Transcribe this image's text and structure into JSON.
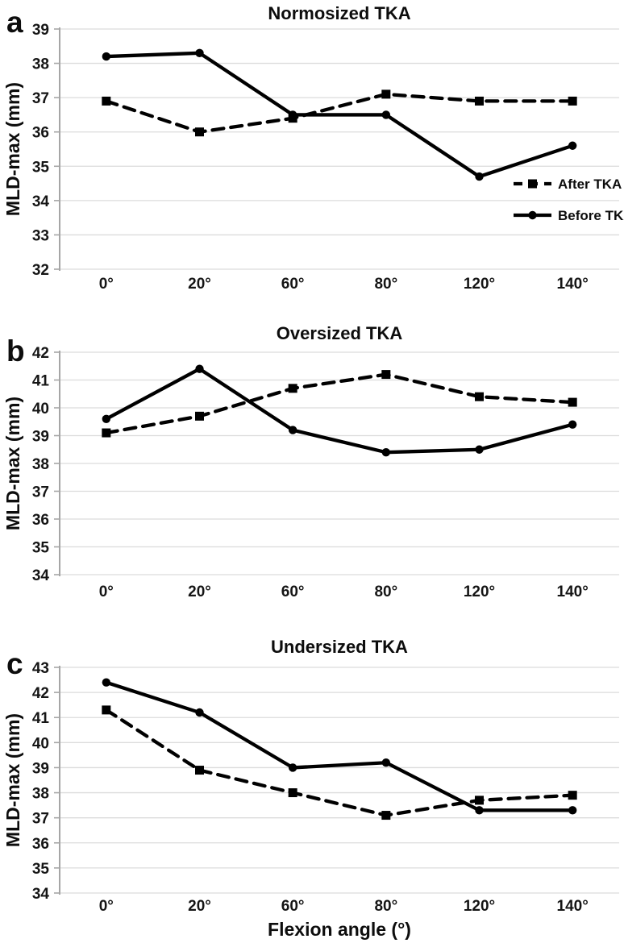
{
  "figure_meta": {
    "background": "#ffffff",
    "line_color": "#000000",
    "gridline_color": "#dcdcdc",
    "axis_color": "#a6a6a6",
    "text_color": "#0d0d0d",
    "xlabel": "Flexion angle (°)",
    "ylabel": "MLD-max (mm)"
  },
  "legend": {
    "after_label": "After TKA",
    "before_label": "Before TKA",
    "after_style": "dashed-square",
    "before_style": "solid-circle",
    "position": "right-middle-of-panel-a"
  },
  "chart_data": [
    {
      "type": "line",
      "panel_label": "a",
      "title": "Normosized TKA",
      "categories": [
        "0°",
        "20°",
        "60°",
        "80°",
        "120°",
        "140°"
      ],
      "xlabel": "",
      "ylabel": "MLD-max (mm)",
      "ylim": [
        32,
        39
      ],
      "ytick_step": 1,
      "grid": true,
      "show_legend": true,
      "series": [
        {
          "name": "After TKA",
          "line_style": "dashed",
          "marker": "square",
          "values": [
            36.9,
            36.0,
            36.4,
            37.1,
            36.9,
            36.9
          ]
        },
        {
          "name": "Before TKA",
          "line_style": "solid",
          "marker": "circle",
          "values": [
            38.2,
            38.3,
            36.5,
            36.5,
            34.7,
            35.6
          ]
        }
      ]
    },
    {
      "type": "line",
      "panel_label": "b",
      "title": "Oversized TKA",
      "categories": [
        "0°",
        "20°",
        "60°",
        "80°",
        "120°",
        "140°"
      ],
      "xlabel": "",
      "ylabel": "MLD-max (mm)",
      "ylim": [
        34,
        42
      ],
      "ytick_step": 1,
      "grid": true,
      "show_legend": false,
      "series": [
        {
          "name": "After TKA",
          "line_style": "dashed",
          "marker": "square",
          "values": [
            39.1,
            39.7,
            40.7,
            41.2,
            40.4,
            40.2
          ]
        },
        {
          "name": "Before TKA",
          "line_style": "solid",
          "marker": "circle",
          "values": [
            39.6,
            41.4,
            39.2,
            38.4,
            38.5,
            39.4
          ]
        }
      ]
    },
    {
      "type": "line",
      "panel_label": "c",
      "title": "Undersized TKA",
      "categories": [
        "0°",
        "20°",
        "60°",
        "80°",
        "120°",
        "140°"
      ],
      "xlabel": "Flexion angle (°)",
      "ylabel": "MLD-max (mm)",
      "ylim": [
        34,
        43
      ],
      "ytick_step": 1,
      "grid": true,
      "show_legend": false,
      "series": [
        {
          "name": "After TKA",
          "line_style": "dashed",
          "marker": "square",
          "values": [
            41.3,
            38.9,
            38.0,
            37.1,
            37.7,
            37.9
          ]
        },
        {
          "name": "Before TKA",
          "line_style": "solid",
          "marker": "circle",
          "values": [
            42.4,
            41.2,
            39.0,
            39.2,
            37.3,
            37.3
          ]
        }
      ]
    }
  ]
}
